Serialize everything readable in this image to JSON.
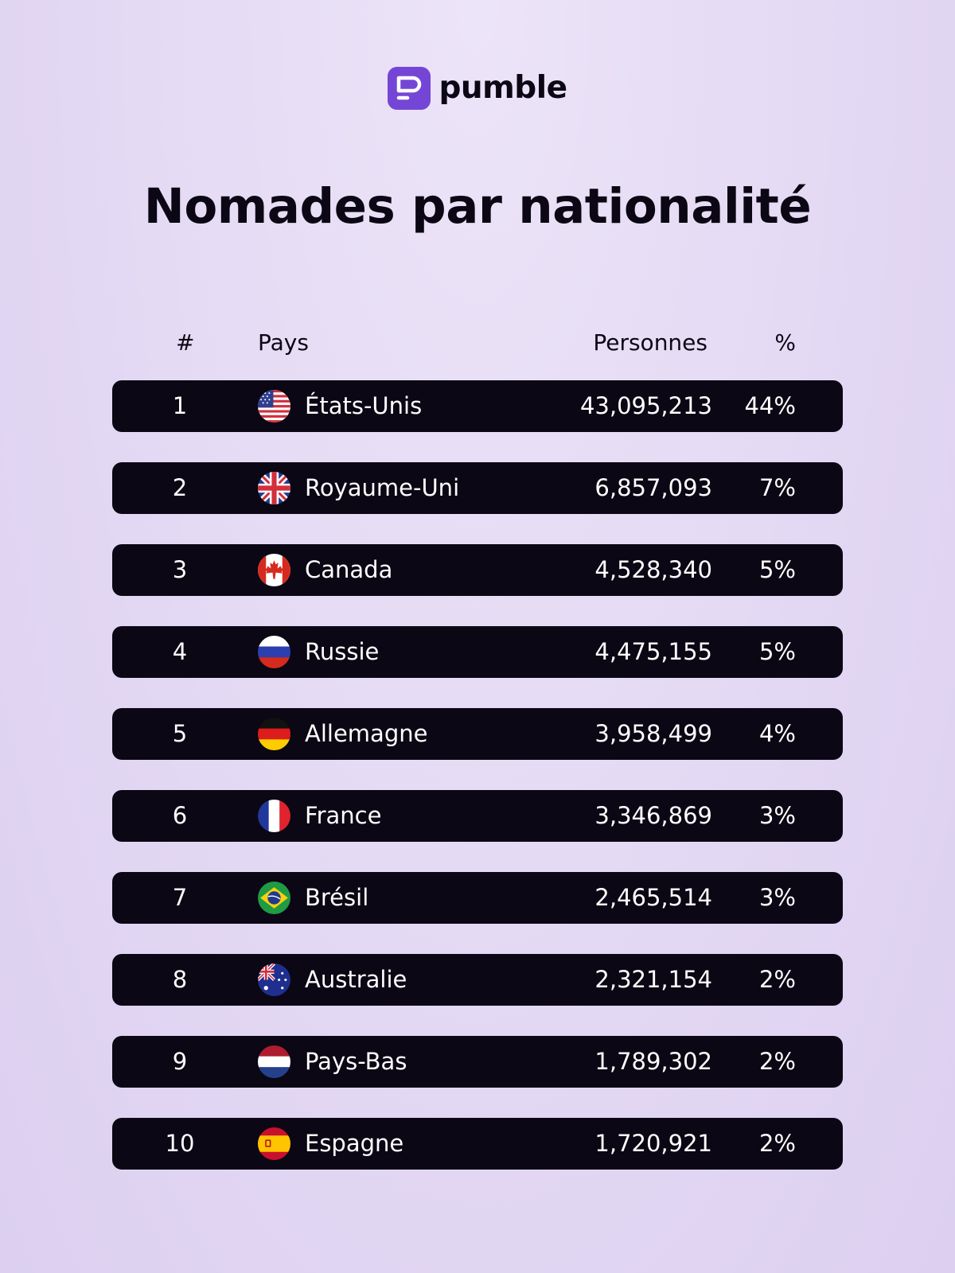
{
  "brand": {
    "name": "pumble",
    "color": "#7b48da"
  },
  "chart_data": {
    "type": "table",
    "title": "Nomades par nationalité",
    "columns": [
      "#",
      "Pays",
      "Personnes",
      "%"
    ],
    "rows": [
      {
        "rank": "1",
        "country": "États-Unis",
        "flag": "us-flag-icon",
        "people": "43,095,213",
        "pct": "44%"
      },
      {
        "rank": "2",
        "country": "Royaume-Uni",
        "flag": "uk-flag-icon",
        "people": "6,857,093",
        "pct": "7%"
      },
      {
        "rank": "3",
        "country": "Canada",
        "flag": "canada-flag-icon",
        "people": "4,528,340",
        "pct": "5%"
      },
      {
        "rank": "4",
        "country": "Russie",
        "flag": "russia-flag-icon",
        "people": "4,475,155",
        "pct": "5%"
      },
      {
        "rank": "5",
        "country": "Allemagne",
        "flag": "germany-flag-icon",
        "people": "3,958,499",
        "pct": "4%"
      },
      {
        "rank": "6",
        "country": "France",
        "flag": "france-flag-icon",
        "people": "3,346,869",
        "pct": "3%"
      },
      {
        "rank": "7",
        "country": "Brésil",
        "flag": "brazil-flag-icon",
        "people": "2,465,514",
        "pct": "3%"
      },
      {
        "rank": "8",
        "country": "Australie",
        "flag": "australia-flag-icon",
        "people": "2,321,154",
        "pct": "2%"
      },
      {
        "rank": "9",
        "country": "Pays-Bas",
        "flag": "netherlands-flag-icon",
        "people": "1,789,302",
        "pct": "2%"
      },
      {
        "rank": "10",
        "country": "Espagne",
        "flag": "spain-flag-icon",
        "people": "1,720,921",
        "pct": "2%"
      }
    ]
  }
}
